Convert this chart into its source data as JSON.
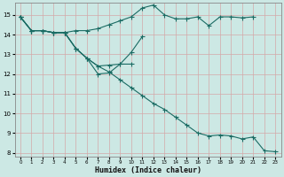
{
  "xlabel": "Humidex (Indice chaleur)",
  "background_color": "#cce8e4",
  "grid_color": "#aed4ce",
  "line_color": "#1a6b63",
  "xlim": [
    -0.5,
    23.5
  ],
  "ylim": [
    7.8,
    15.6
  ],
  "yticks": [
    8,
    9,
    10,
    11,
    12,
    13,
    14,
    15
  ],
  "xtick_labels": [
    "0",
    "1",
    "2",
    "3",
    "4",
    "5",
    "6",
    "7",
    "8",
    "9",
    "10",
    "11",
    "12",
    "13",
    "14",
    "15",
    "16",
    "17",
    "18",
    "19",
    "20",
    "21",
    "22",
    "23"
  ],
  "series": [
    {
      "x": [
        0,
        1,
        2,
        3,
        4,
        5,
        6,
        7,
        8,
        9,
        10,
        11,
        12,
        13,
        14,
        15,
        16,
        17,
        18,
        19,
        20,
        21
      ],
      "y": [
        14.9,
        14.2,
        14.2,
        14.1,
        14.1,
        14.2,
        14.2,
        14.3,
        14.5,
        14.7,
        14.9,
        15.35,
        15.5,
        15.0,
        14.8,
        14.8,
        14.9,
        14.45,
        14.9,
        14.9,
        14.85,
        14.9
      ]
    },
    {
      "x": [
        0,
        1,
        2,
        3,
        4,
        5,
        6,
        7,
        8,
        9,
        10,
        11
      ],
      "y": [
        14.9,
        14.2,
        14.2,
        14.1,
        14.1,
        13.3,
        12.8,
        12.0,
        12.05,
        12.5,
        13.1,
        13.9
      ]
    },
    {
      "x": [
        0,
        1,
        2,
        3,
        4,
        5,
        6,
        7,
        8,
        9,
        10,
        11,
        12,
        13,
        14,
        15,
        16,
        17,
        18,
        19,
        20,
        21,
        22,
        23
      ],
      "y": [
        14.9,
        14.2,
        14.2,
        14.1,
        14.1,
        13.3,
        12.8,
        12.4,
        12.1,
        11.7,
        11.3,
        10.9,
        10.5,
        10.2,
        9.8,
        9.4,
        9.0,
        8.85,
        8.9,
        8.85,
        8.7,
        8.8,
        8.1,
        8.05
      ]
    },
    {
      "x": [
        0,
        1,
        2,
        3,
        4,
        5,
        6,
        7,
        8,
        9,
        10
      ],
      "y": [
        14.9,
        14.2,
        14.2,
        14.1,
        14.1,
        13.3,
        12.8,
        12.4,
        12.45,
        12.5,
        12.5
      ]
    }
  ]
}
